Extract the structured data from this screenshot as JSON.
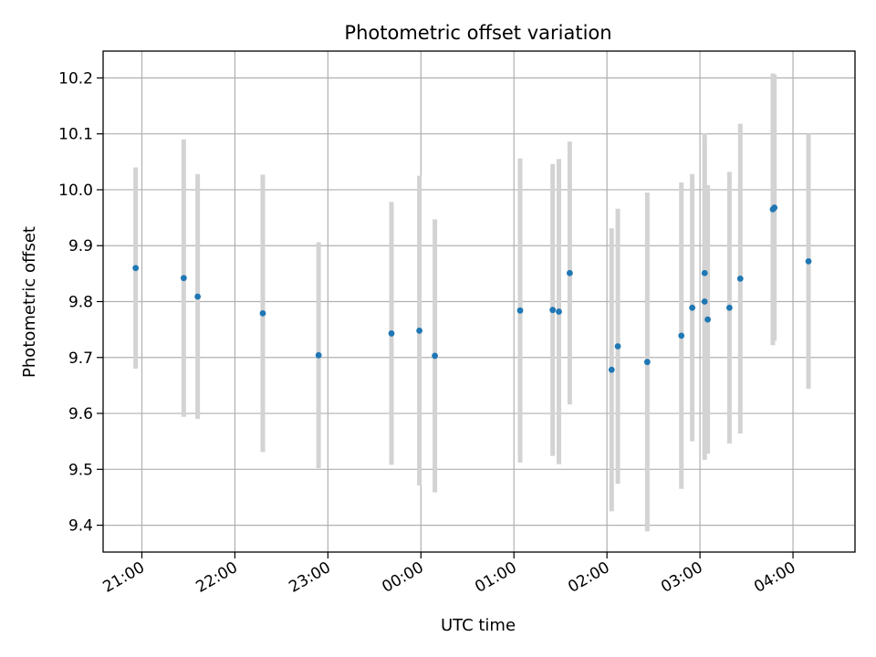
{
  "chart_data": {
    "type": "scatter",
    "title": "Photometric offset variation",
    "xlabel": "UTC time",
    "ylabel": "Photometric offset",
    "x_axis_kind": "time",
    "x_reference_date": "",
    "xlim": [
      "20:35",
      "04:40"
    ],
    "ylim": [
      9.352,
      10.248
    ],
    "grid": true,
    "legend": "none",
    "colors": {
      "point": "#1f77b4",
      "errorbar": "#d3d3d3",
      "grid": "#b0b0b0"
    },
    "x_ticks": [
      "21:00",
      "22:00",
      "23:00",
      "00:00",
      "01:00",
      "02:00",
      "03:00",
      "04:00"
    ],
    "y_ticks": [
      "9.4",
      "9.5",
      "9.6",
      "9.7",
      "9.8",
      "9.9",
      "10.0",
      "10.1",
      "10.2"
    ],
    "series": [
      {
        "points": [
          {
            "t": "20:56",
            "y": 9.86,
            "err": 0.18
          },
          {
            "t": "21:27",
            "y": 9.842,
            "err": 0.248
          },
          {
            "t": "21:36",
            "y": 9.809,
            "err": 0.219
          },
          {
            "t": "22:18",
            "y": 9.779,
            "err": 0.248
          },
          {
            "t": "22:54",
            "y": 9.704,
            "err": 0.202
          },
          {
            "t": "23:41",
            "y": 9.743,
            "err": 0.235
          },
          {
            "t": "23:59",
            "y": 9.748,
            "err": 0.277
          },
          {
            "t": "00:09",
            "y": 9.703,
            "err": 0.244
          },
          {
            "t": "01:04",
            "y": 9.784,
            "err": 0.272
          },
          {
            "t": "01:25",
            "y": 9.785,
            "err": 0.261
          },
          {
            "t": "01:29",
            "y": 9.782,
            "err": 0.273
          },
          {
            "t": "01:36",
            "y": 9.851,
            "err": 0.235
          },
          {
            "t": "02:03",
            "y": 9.678,
            "err": 0.253
          },
          {
            "t": "02:07",
            "y": 9.72,
            "err": 0.246
          },
          {
            "t": "02:26",
            "y": 9.692,
            "err": 0.303
          },
          {
            "t": "02:48",
            "y": 9.739,
            "err": 0.274
          },
          {
            "t": "02:55",
            "y": 9.789,
            "err": 0.239
          },
          {
            "t": "03:03",
            "y": 9.851,
            "err": 0.25
          },
          {
            "t": "03:03",
            "y": 9.8,
            "err": 0.283
          },
          {
            "t": "03:05",
            "y": 9.768,
            "err": 0.24
          },
          {
            "t": "03:19",
            "y": 9.789,
            "err": 0.243
          },
          {
            "t": "03:26",
            "y": 9.841,
            "err": 0.277
          },
          {
            "t": "03:47",
            "y": 9.965,
            "err": 0.243
          },
          {
            "t": "03:48",
            "y": 9.968,
            "err": 0.238
          },
          {
            "t": "04:10",
            "y": 9.872,
            "err": 0.228
          }
        ]
      }
    ]
  }
}
